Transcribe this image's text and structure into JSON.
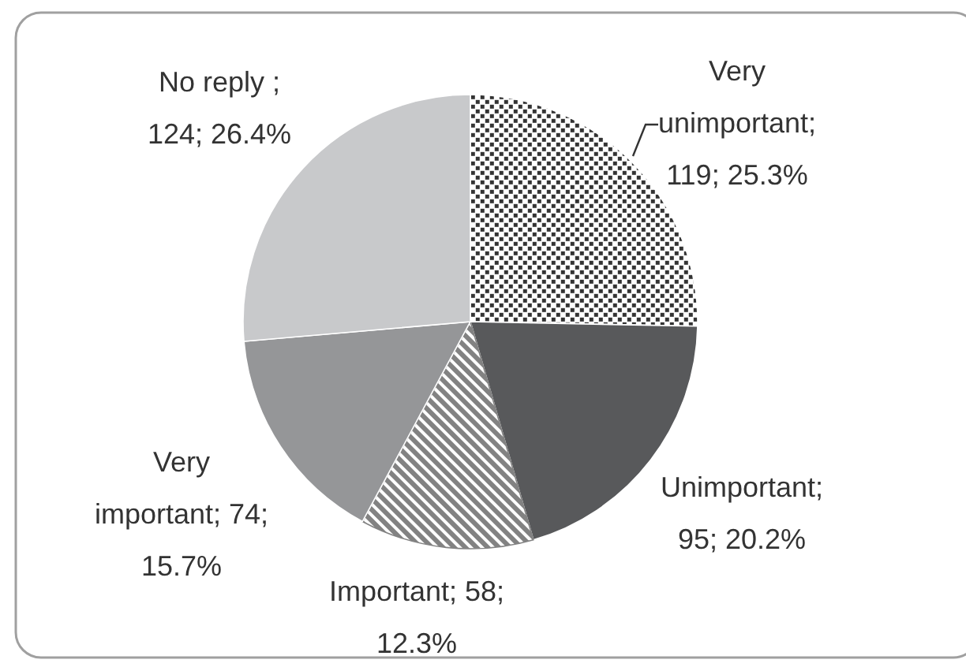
{
  "chart_data": {
    "type": "pie",
    "categories": [
      "Very unimportant",
      "Unimportant",
      "Important",
      "Very important",
      "No reply"
    ],
    "values": [
      119,
      95,
      58,
      74,
      124
    ],
    "colors": [
      "#ffffff",
      "#58595b",
      "#828282",
      "#959698",
      "#c8c9cb"
    ],
    "value_labels": [
      "; 119; 25.3%",
      "; 95; 20.2%",
      "; 58; 12.3%",
      "; 74; 15.7%",
      " ; 124; 26.4%"
    ]
  }
}
